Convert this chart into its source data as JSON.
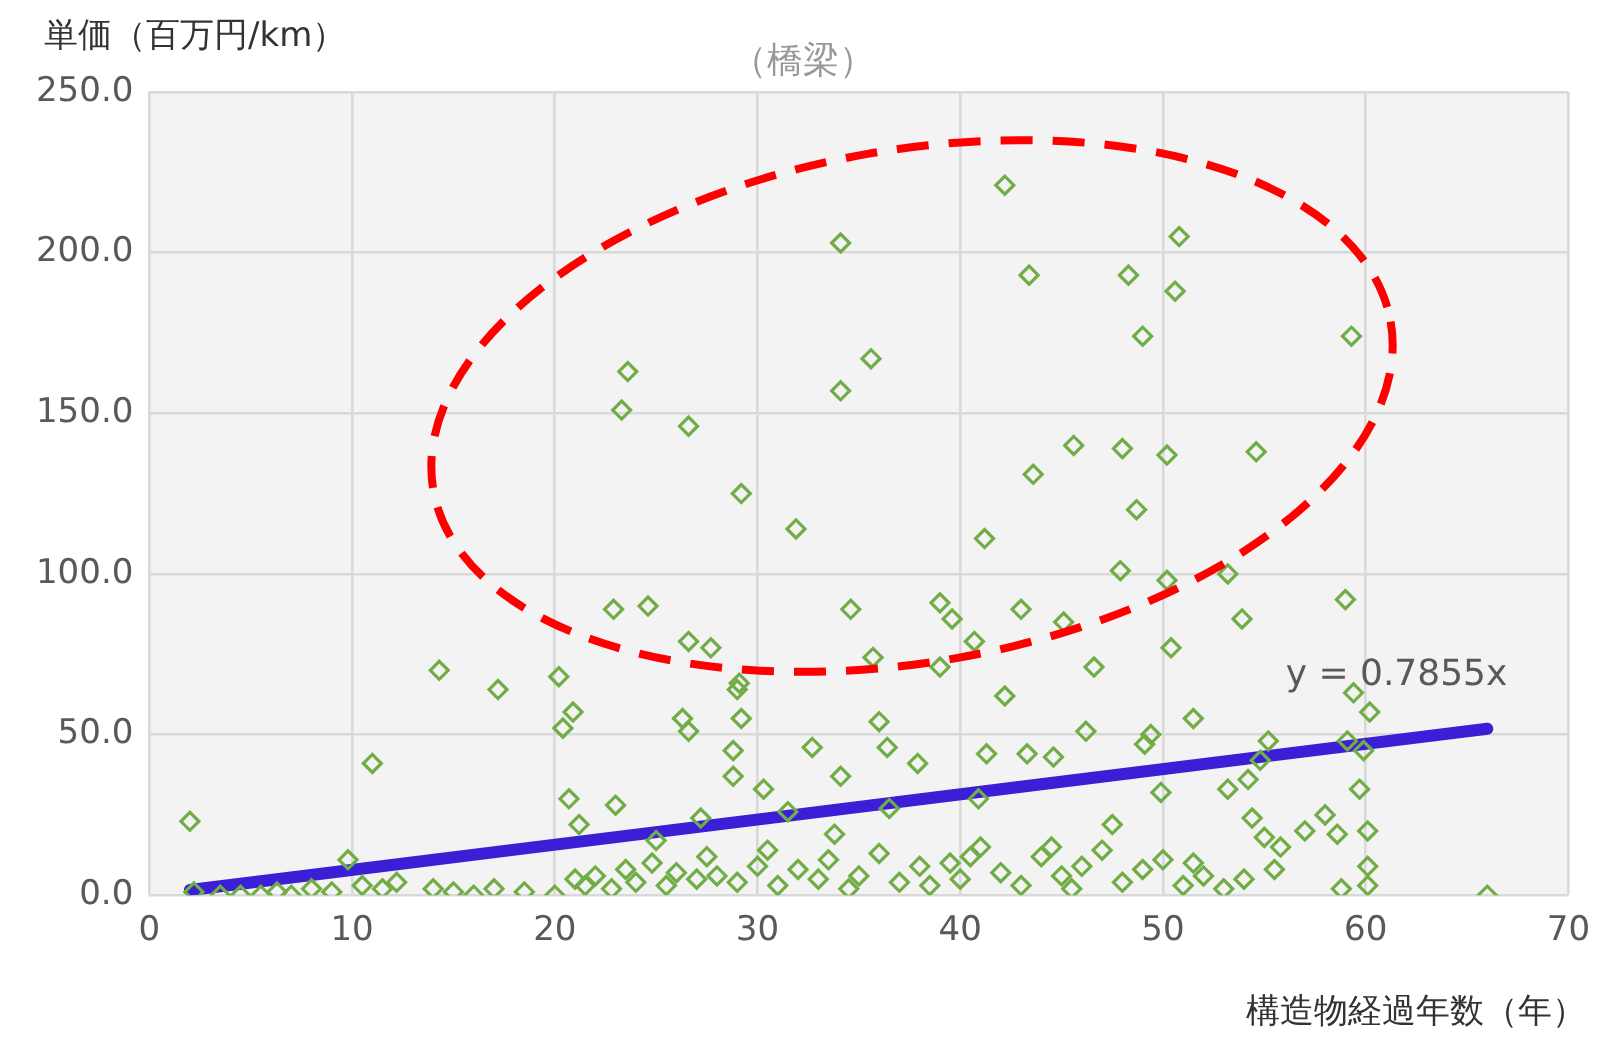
{
  "chart_data": {
    "type": "scatter",
    "title": "（橋梁）",
    "ylabel": "単価（百万円/km）",
    "xlabel": "構造物経過年数（年）",
    "xlim": [
      0,
      70
    ],
    "xticks": [
      0,
      10,
      20,
      30,
      40,
      50,
      60,
      70
    ],
    "ylim": [
      0,
      250
    ],
    "yticks": [
      {
        "value": 0,
        "label": "0.0"
      },
      {
        "value": 50,
        "label": "50.0"
      },
      {
        "value": 100,
        "label": "100.0"
      },
      {
        "value": 150,
        "label": "150.0"
      },
      {
        "value": 200,
        "label": "200.0"
      },
      {
        "value": 250,
        "label": "250.0"
      }
    ],
    "grid": true,
    "legend": false,
    "annotations": [
      "y = 0.7855x"
    ],
    "series": [
      {
        "color": "#70ad47",
        "marker": "diamond",
        "x": [
          42.2,
          43.4,
          48.3,
          50.8,
          50.6,
          49.0,
          59.3,
          34.1,
          23.6,
          23.3,
          26.6,
          34.1,
          35.6,
          29.2,
          31.9,
          45.6,
          43.6,
          48.0,
          50.2,
          54.6,
          48.7,
          41.2,
          47.9,
          22.9,
          24.6,
          14.3,
          17.2,
          20.2,
          26.6,
          27.7,
          34.6,
          39.0,
          39.6,
          43.0,
          45.1,
          53.2,
          59.0,
          50.2,
          40.7,
          29.1,
          35.7,
          39.0,
          42.2,
          46.6,
          50.4,
          53.9,
          59.4,
          60.2,
          2.0,
          11.0,
          20.7,
          20.4,
          20.9,
          26.3,
          26.6,
          29.0,
          29.2,
          28.8,
          28.8,
          30.3,
          32.7,
          34.1,
          36.4,
          36.0,
          37.9,
          41.3,
          40.9,
          43.3,
          44.6,
          46.2,
          49.1,
          49.4,
          51.5,
          49.9,
          53.2,
          54.2,
          55.2,
          54.8,
          54.4,
          59.1,
          59.9,
          59.7,
          60.1,
          60.1,
          60.1,
          58.8,
          58.6,
          66.0,
          2.2,
          3.5,
          4.5,
          5.5,
          6.3,
          7.0,
          8.0,
          9.0,
          9.8,
          10.5,
          11.5,
          12.2,
          14.0,
          15.0,
          16.0,
          17.0,
          18.5,
          20.0,
          21.0,
          21.5,
          22.0,
          22.8,
          23.5,
          24.0,
          24.8,
          25.5,
          26.0,
          27.0,
          27.5,
          28.0,
          29.0,
          30.0,
          30.5,
          31.0,
          32.0,
          33.0,
          33.5,
          34.5,
          35.0,
          36.0,
          37.0,
          38.0,
          38.5,
          39.5,
          40.0,
          41.0,
          42.0,
          43.0,
          44.0,
          45.0,
          45.5,
          46.0,
          47.0,
          48.0,
          49.0,
          50.0,
          51.0,
          52.0,
          53.0,
          54.0,
          55.0,
          55.8,
          57.0,
          58.0,
          21.2,
          23.0,
          25.0,
          27.2,
          31.5,
          33.8,
          36.5,
          40.5,
          44.5,
          47.5,
          51.5,
          55.5
        ],
        "values": [
          221,
          193,
          193,
          205,
          188,
          174,
          174,
          203,
          163,
          151,
          146,
          157,
          167,
          125,
          114,
          140,
          131,
          139,
          137,
          138,
          120,
          111,
          101,
          89,
          90,
          70,
          64,
          68,
          79,
          77,
          89,
          91,
          86,
          89,
          85,
          100,
          92,
          98,
          79,
          66,
          74,
          71,
          62,
          71,
          77,
          86,
          63,
          57,
          23,
          41,
          30,
          52,
          57,
          55,
          51,
          64,
          55,
          45,
          37,
          33,
          46,
          37,
          46,
          54,
          41,
          44,
          30,
          44,
          43,
          51,
          47,
          50,
          55,
          32,
          33,
          36,
          48,
          42,
          24,
          48,
          45,
          33,
          20,
          9,
          3,
          2,
          19,
          0,
          1,
          0,
          0,
          0,
          1,
          0,
          2,
          1,
          11,
          3,
          2,
          4,
          2,
          1,
          0,
          2,
          1,
          0,
          5,
          3,
          6,
          2,
          8,
          4,
          10,
          3,
          7,
          5,
          12,
          6,
          4,
          9,
          14,
          3,
          8,
          5,
          11,
          2,
          6,
          13,
          4,
          9,
          3,
          10,
          5,
          15,
          7,
          3,
          12,
          6,
          2,
          9,
          14,
          4,
          8,
          11,
          3,
          6,
          2,
          5,
          18,
          15,
          20,
          25,
          22,
          28,
          17,
          24,
          26,
          19,
          27,
          12,
          15,
          22,
          10,
          8
        ]
      },
      {
        "type": "line",
        "marker": "none",
        "color": "#3b1fd6",
        "x": [
          2,
          66
        ],
        "values": [
          1.6,
          51.8
        ]
      }
    ]
  }
}
